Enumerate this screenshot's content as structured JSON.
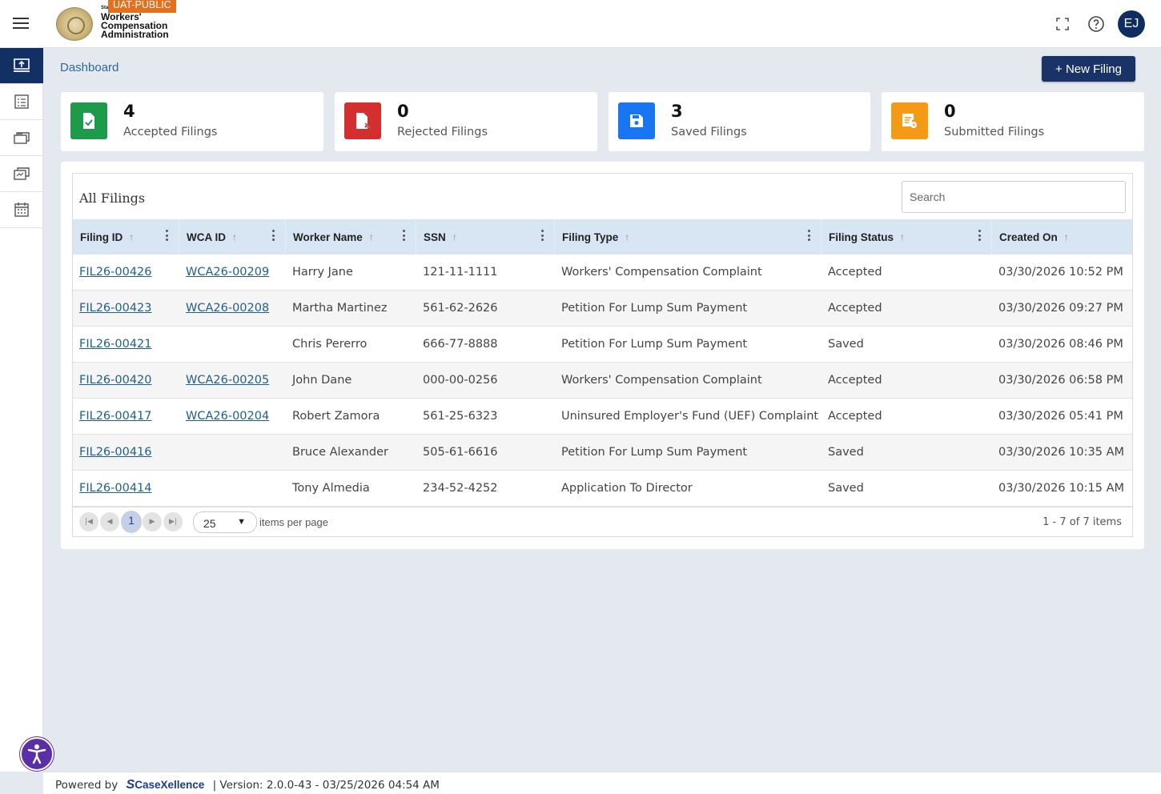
{
  "header": {
    "badge": "UAT-PUBLIC",
    "logo_state": "State",
    "logo_line1": "Workers'",
    "logo_line2": "Compensation",
    "logo_line3": "Administration",
    "avatar_initials": "EJ"
  },
  "sidebar": {
    "items": [
      {
        "icon": "upload-monitor-icon",
        "active": true
      },
      {
        "icon": "checklist-icon",
        "active": false
      },
      {
        "icon": "briefcase-stack-icon",
        "active": false
      },
      {
        "icon": "cards-icon",
        "active": false
      },
      {
        "icon": "calendar-icon",
        "active": false
      }
    ]
  },
  "breadcrumb": "Dashboard",
  "new_filing_label": "+ New Filing",
  "cards": [
    {
      "count": "4",
      "label": "Accepted Filings",
      "color": "#1e9a4b"
    },
    {
      "count": "0",
      "label": "Rejected Filings",
      "color": "#d32f2f"
    },
    {
      "count": "3",
      "label": "Saved Filings",
      "color": "#1976f2"
    },
    {
      "count": "0",
      "label": "Submitted Filings",
      "color": "#f59a14"
    }
  ],
  "grid": {
    "title": "All Filings",
    "search_placeholder": "Search",
    "columns": [
      "Filing ID",
      "WCA ID",
      "Worker Name",
      "SSN",
      "Filing Type",
      "Filing Status",
      "Created On"
    ],
    "rows": [
      {
        "filing_id": "FIL26-00426",
        "wca_id": "WCA26-00209",
        "worker": "Harry Jane",
        "ssn": "121-11-1111",
        "type": "Workers' Compensation Complaint",
        "status": "Accepted",
        "created": "03/30/2026 10:52 PM"
      },
      {
        "filing_id": "FIL26-00423",
        "wca_id": "WCA26-00208",
        "worker": "Martha Martinez",
        "ssn": "561-62-2626",
        "type": "Petition For Lump Sum Payment",
        "status": "Accepted",
        "created": "03/30/2026 09:27 PM"
      },
      {
        "filing_id": "FIL26-00421",
        "wca_id": "",
        "worker": "Chris Pererro",
        "ssn": "666-77-8888",
        "type": "Petition For Lump Sum Payment",
        "status": "Saved",
        "created": "03/30/2026 08:46 PM"
      },
      {
        "filing_id": "FIL26-00420",
        "wca_id": "WCA26-00205",
        "worker": "John Dane",
        "ssn": "000-00-0256",
        "type": "Workers' Compensation Complaint",
        "status": "Accepted",
        "created": "03/30/2026 06:58 PM"
      },
      {
        "filing_id": "FIL26-00417",
        "wca_id": "WCA26-00204",
        "worker": "Robert Zamora",
        "ssn": "561-25-6323",
        "type": "Uninsured Employer's Fund (UEF) Complaint",
        "status": "Accepted",
        "created": "03/30/2026 05:41 PM"
      },
      {
        "filing_id": "FIL26-00416",
        "wca_id": "",
        "worker": "Bruce Alexander",
        "ssn": "505-61-6616",
        "type": "Petition For Lump Sum Payment",
        "status": "Saved",
        "created": "03/30/2026 10:35 AM"
      },
      {
        "filing_id": "FIL26-00414",
        "wca_id": "",
        "worker": "Tony Almedia",
        "ssn": "234-52-4252",
        "type": "Application To Director",
        "status": "Saved",
        "created": "03/30/2026 10:15 AM"
      }
    ],
    "pager": {
      "current_page": "1",
      "per_page": "25",
      "per_page_label": "items per page",
      "info": "1 - 7 of 7 items"
    }
  },
  "footer": {
    "powered_by": "Powered by",
    "brand": "CaseXellence",
    "version": "|  Version: 2.0.0-43 - 03/25/2026 04:54 AM"
  }
}
